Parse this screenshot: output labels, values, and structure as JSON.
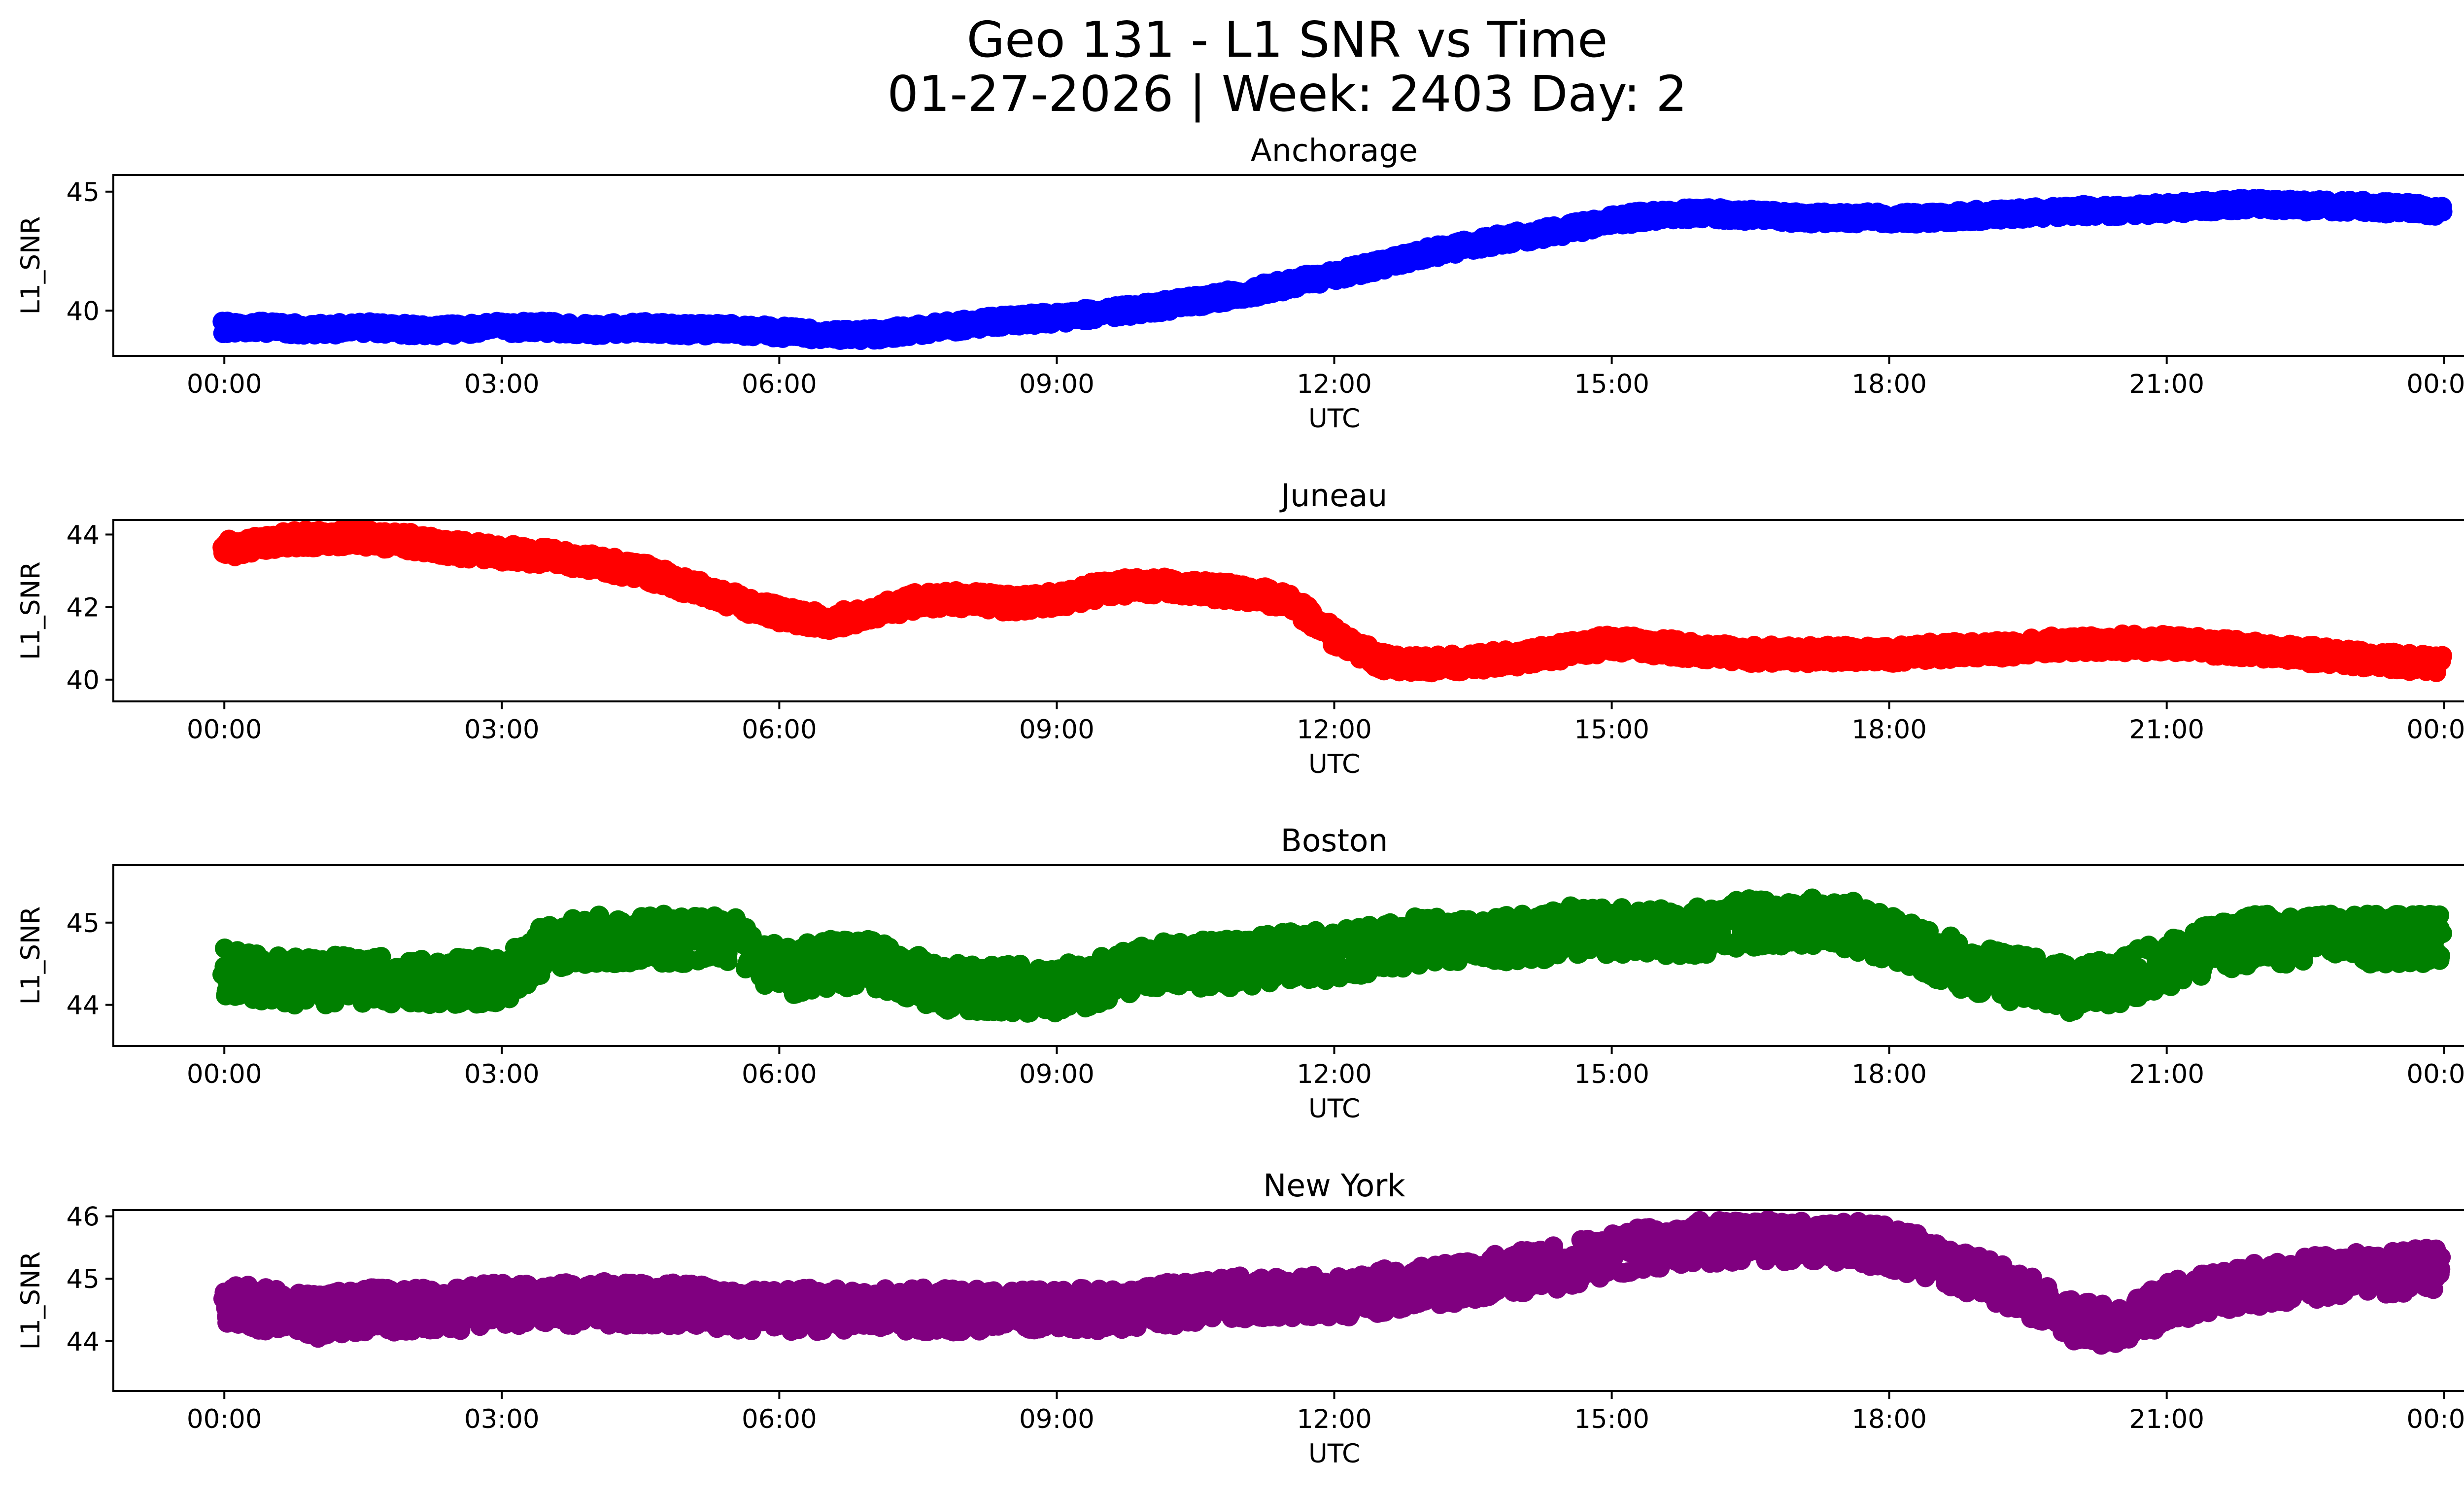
{
  "figure": {
    "title_line1": "Geo 131 - L1 SNR vs Time",
    "title_line2": "01-27-2026 | Week: 2403 Day: 2"
  },
  "chart_data": [
    {
      "type": "scatter",
      "title": "Anchorage",
      "xlabel": "UTC",
      "ylabel": "L1_SNR",
      "color": "#0000ff",
      "xlim_hours": [
        -1.2,
        25.2
      ],
      "ylim": [
        38.1,
        45.7
      ],
      "xticks": [
        0,
        3,
        6,
        9,
        12,
        15,
        18,
        21,
        24
      ],
      "xtick_labels": [
        "00:00",
        "03:00",
        "06:00",
        "09:00",
        "12:00",
        "15:00",
        "18:00",
        "21:00",
        "00:00"
      ],
      "yticks": [
        40,
        45
      ],
      "ytick_labels": [
        "40",
        "45"
      ],
      "series": [
        {
          "name": "Anchorage",
          "x_hours": [
            0,
            0.5,
            1,
            1.5,
            2,
            2.5,
            3,
            3.5,
            4,
            4.5,
            5,
            5.5,
            6,
            6.5,
            7,
            7.5,
            8,
            8.5,
            9,
            9.5,
            10,
            10.5,
            11,
            11.5,
            12,
            12.5,
            13,
            13.5,
            14,
            14.5,
            15,
            15.5,
            16,
            16.5,
            17,
            17.5,
            18,
            18.5,
            19,
            19.5,
            20,
            20.5,
            21,
            21.5,
            22,
            22.5,
            23,
            23.5,
            24
          ],
          "values": [
            39.3,
            39.3,
            39.2,
            39.3,
            39.2,
            39.2,
            39.3,
            39.3,
            39.2,
            39.3,
            39.2,
            39.2,
            39.1,
            39.0,
            39.0,
            39.2,
            39.4,
            39.6,
            39.7,
            39.9,
            40.1,
            40.4,
            40.7,
            41.1,
            41.5,
            41.9,
            42.4,
            42.8,
            43.1,
            43.4,
            43.8,
            44.0,
            44.1,
            44.0,
            43.9,
            43.9,
            43.9,
            43.9,
            44.0,
            44.1,
            44.2,
            44.2,
            44.3,
            44.4,
            44.5,
            44.4,
            44.4,
            44.3,
            44.2
          ],
          "spread": 0.5
        }
      ]
    },
    {
      "type": "scatter",
      "title": "Juneau",
      "xlabel": "UTC",
      "ylabel": "L1_SNR",
      "color": "#ff0000",
      "xlim_hours": [
        -1.2,
        25.2
      ],
      "ylim": [
        39.4,
        44.4
      ],
      "xticks": [
        0,
        3,
        6,
        9,
        12,
        15,
        18,
        21,
        24
      ],
      "xtick_labels": [
        "00:00",
        "03:00",
        "06:00",
        "09:00",
        "12:00",
        "15:00",
        "18:00",
        "21:00",
        "00:00"
      ],
      "yticks": [
        40,
        42,
        44
      ],
      "ytick_labels": [
        "40",
        "42",
        "44"
      ],
      "series": [
        {
          "name": "Juneau",
          "x_hours": [
            0,
            0.5,
            1,
            1.5,
            2,
            2.5,
            3,
            3.5,
            4,
            4.5,
            5,
            5.5,
            6,
            6.5,
            7,
            7.5,
            8,
            8.5,
            9,
            9.5,
            10,
            10.5,
            11,
            11.5,
            12,
            12.5,
            13,
            13.5,
            14,
            14.5,
            15,
            15.5,
            16,
            16.5,
            17,
            17.5,
            18,
            18.5,
            19,
            19.5,
            20,
            20.5,
            21,
            21.5,
            22,
            22.5,
            23,
            23.5,
            24
          ],
          "values": [
            43.6,
            43.8,
            43.9,
            43.9,
            43.8,
            43.6,
            43.5,
            43.4,
            43.2,
            43.0,
            42.6,
            42.2,
            41.8,
            41.6,
            41.8,
            42.2,
            42.2,
            42.1,
            42.2,
            42.5,
            42.6,
            42.5,
            42.4,
            42.2,
            41.2,
            40.5,
            40.4,
            40.5,
            40.6,
            40.8,
            41.0,
            40.9,
            40.8,
            40.7,
            40.7,
            40.7,
            40.7,
            40.8,
            40.8,
            40.9,
            41.0,
            41.0,
            41.0,
            40.9,
            40.8,
            40.7,
            40.6,
            40.5,
            40.4
          ],
          "spread": 0.5
        }
      ]
    },
    {
      "type": "scatter",
      "title": "Boston",
      "xlabel": "UTC",
      "ylabel": "L1_SNR",
      "color": "#008000",
      "xlim_hours": [
        -1.2,
        25.2
      ],
      "ylim": [
        43.5,
        45.7
      ],
      "xticks": [
        0,
        3,
        6,
        9,
        12,
        15,
        18,
        21,
        24
      ],
      "xtick_labels": [
        "00:00",
        "03:00",
        "06:00",
        "09:00",
        "12:00",
        "15:00",
        "18:00",
        "21:00",
        "00:00"
      ],
      "yticks": [
        44,
        45
      ],
      "ytick_labels": [
        "44",
        "45"
      ],
      "series": [
        {
          "name": "Boston",
          "x_hours": [
            0,
            0.5,
            1,
            1.5,
            2,
            2.5,
            3,
            3.5,
            4,
            4.5,
            5,
            5.5,
            6,
            6.5,
            7,
            7.5,
            8,
            8.5,
            9,
            9.5,
            10,
            10.5,
            11,
            11.5,
            12,
            12.5,
            13,
            13.5,
            14,
            14.5,
            15,
            15.5,
            16,
            16.5,
            17,
            17.5,
            18,
            18.5,
            19,
            19.5,
            20,
            20.5,
            21,
            21.5,
            22,
            22.5,
            23,
            23.5,
            24
          ],
          "values": [
            44.4,
            44.3,
            44.3,
            44.3,
            44.3,
            44.3,
            44.3,
            44.7,
            44.8,
            44.8,
            44.8,
            44.8,
            44.4,
            44.5,
            44.5,
            44.3,
            44.2,
            44.2,
            44.2,
            44.3,
            44.5,
            44.5,
            44.5,
            44.6,
            44.6,
            44.7,
            44.8,
            44.8,
            44.8,
            44.9,
            44.9,
            44.9,
            44.9,
            45.0,
            45.0,
            45.0,
            44.8,
            44.6,
            44.4,
            44.3,
            44.2,
            44.3,
            44.5,
            44.7,
            44.8,
            44.8,
            44.8,
            44.8,
            44.8
          ],
          "spread": 0.6
        }
      ]
    },
    {
      "type": "scatter",
      "title": "New York",
      "xlabel": "UTC",
      "ylabel": "L1_SNR",
      "color": "#800080",
      "xlim_hours": [
        -1.2,
        25.2
      ],
      "ylim": [
        43.2,
        46.1
      ],
      "xticks": [
        0,
        3,
        6,
        9,
        12,
        15,
        18,
        21,
        24
      ],
      "xtick_labels": [
        "00:00",
        "03:00",
        "06:00",
        "09:00",
        "12:00",
        "15:00",
        "18:00",
        "21:00",
        "00:00"
      ],
      "yticks": [
        44,
        45,
        46
      ],
      "ytick_labels": [
        "44",
        "45",
        "46"
      ],
      "series": [
        {
          "name": "New York",
          "x_hours": [
            0,
            0.5,
            1,
            1.5,
            2,
            2.5,
            3,
            3.5,
            4,
            4.5,
            5,
            5.5,
            6,
            6.5,
            7,
            7.5,
            8,
            8.5,
            9,
            9.5,
            10,
            10.5,
            11,
            11.5,
            12,
            12.5,
            13,
            13.5,
            14,
            14.5,
            15,
            15.5,
            16,
            16.5,
            17,
            17.5,
            18,
            18.5,
            19,
            19.5,
            20,
            20.5,
            21,
            21.5,
            22,
            22.5,
            23,
            23.5,
            24
          ],
          "values": [
            44.6,
            44.5,
            44.4,
            44.5,
            44.5,
            44.5,
            44.6,
            44.6,
            44.6,
            44.6,
            44.6,
            44.5,
            44.5,
            44.5,
            44.5,
            44.5,
            44.5,
            44.5,
            44.5,
            44.5,
            44.6,
            44.6,
            44.7,
            44.7,
            44.7,
            44.8,
            44.9,
            45.0,
            45.1,
            45.2,
            45.4,
            45.5,
            45.6,
            45.6,
            45.6,
            45.6,
            45.5,
            45.3,
            45.0,
            44.7,
            44.3,
            44.2,
            44.6,
            44.8,
            44.9,
            45.0,
            45.1,
            45.1,
            45.2
          ],
          "spread": 0.7
        }
      ]
    }
  ]
}
